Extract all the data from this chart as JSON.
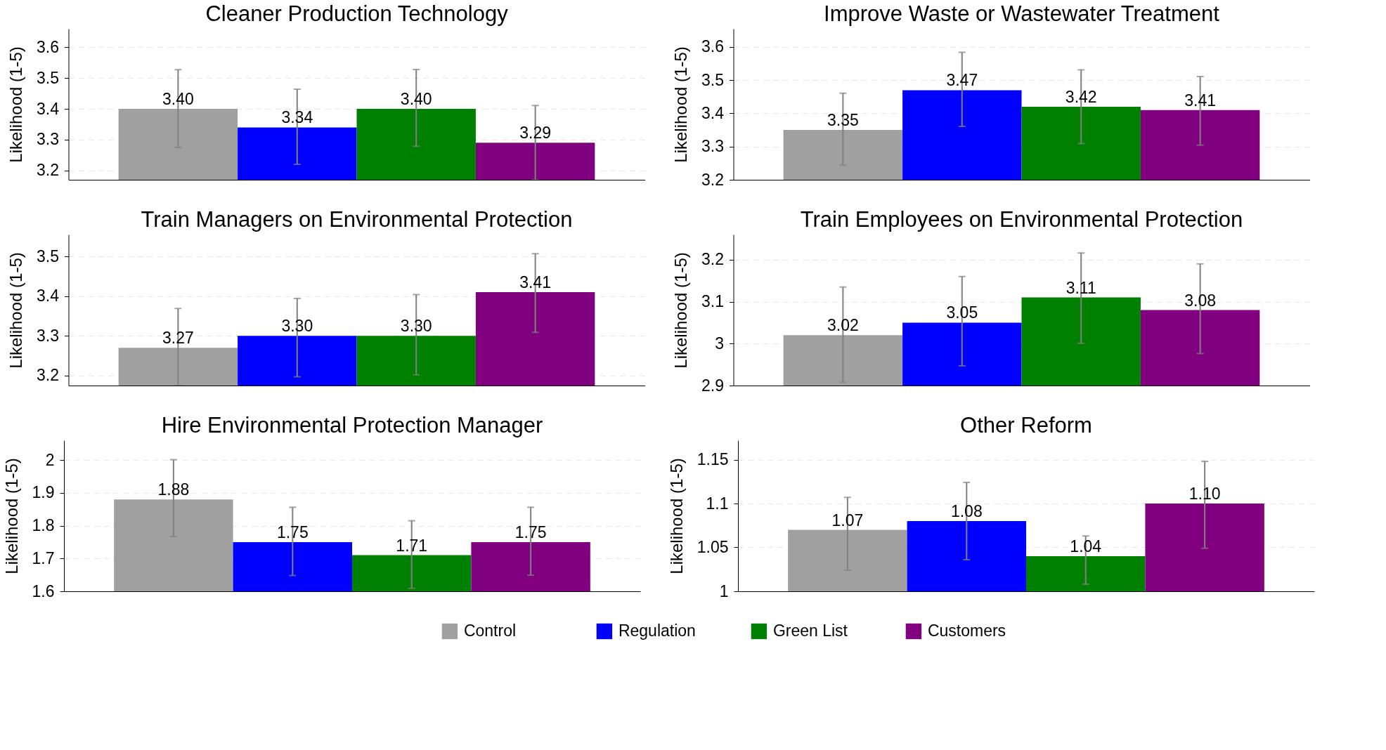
{
  "chart_data": [
    {
      "type": "bar",
      "title": "Cleaner Production Technology",
      "ylabel": "Likelihood (1-5)",
      "categories": [
        null
      ],
      "ylim": [
        3.17,
        3.66
      ],
      "yticks": [
        3.2,
        3.3,
        3.4,
        3.5,
        3.6
      ],
      "grid": "y",
      "legend": "bottom",
      "series": [
        {
          "name": "Control",
          "color": "#a0a0a0",
          "values": [
            3.4
          ],
          "value_labels": [
            "3.40"
          ],
          "errors": [
            [
              3.275,
              3.527
            ]
          ]
        },
        {
          "name": "Regulation",
          "color": "#0000ff",
          "values": [
            3.34
          ],
          "value_labels": [
            "3.34"
          ],
          "errors": [
            [
              3.22,
              3.464
            ]
          ]
        },
        {
          "name": "Green List",
          "color": "#008000",
          "values": [
            3.4
          ],
          "value_labels": [
            "3.40"
          ],
          "errors": [
            [
              3.279,
              3.528
            ]
          ]
        },
        {
          "name": "Customers",
          "color": "#800080",
          "values": [
            3.29
          ],
          "value_labels": [
            "3.29"
          ],
          "errors": [
            [
              3.17,
              3.411
            ]
          ]
        }
      ]
    },
    {
      "type": "bar",
      "title": "Improve Waste or Wastewater Treatment",
      "ylabel": "Likelihood (1-5)",
      "categories": [
        null
      ],
      "ylim": [
        3.2,
        3.655
      ],
      "yticks": [
        3.2,
        3.3,
        3.4,
        3.5,
        3.6
      ],
      "grid": "y",
      "legend": "bottom",
      "series": [
        {
          "name": "Control",
          "color": "#a0a0a0",
          "values": [
            3.35
          ],
          "value_labels": [
            "3.35"
          ],
          "errors": [
            [
              3.244,
              3.461
            ]
          ]
        },
        {
          "name": "Regulation",
          "color": "#0000ff",
          "values": [
            3.47
          ],
          "value_labels": [
            "3.47"
          ],
          "errors": [
            [
              3.361,
              3.584
            ]
          ]
        },
        {
          "name": "Green List",
          "color": "#008000",
          "values": [
            3.42
          ],
          "value_labels": [
            "3.42"
          ],
          "errors": [
            [
              3.309,
              3.531
            ]
          ]
        },
        {
          "name": "Customers",
          "color": "#800080",
          "values": [
            3.41
          ],
          "value_labels": [
            "3.41"
          ],
          "errors": [
            [
              3.304,
              3.511
            ]
          ]
        }
      ]
    },
    {
      "type": "bar",
      "title": "Train Managers on Environmental Protection",
      "ylabel": "Likelihood (1-5)",
      "categories": [
        null
      ],
      "ylim": [
        3.175,
        3.555
      ],
      "yticks": [
        3.2,
        3.3,
        3.4,
        3.5
      ],
      "grid": "y",
      "legend": "bottom",
      "series": [
        {
          "name": "Control",
          "color": "#a0a0a0",
          "values": [
            3.27
          ],
          "value_labels": [
            "3.27"
          ],
          "errors": [
            [
              3.175,
              3.369
            ]
          ]
        },
        {
          "name": "Regulation",
          "color": "#0000ff",
          "values": [
            3.3
          ],
          "value_labels": [
            "3.30"
          ],
          "errors": [
            [
              3.197,
              3.394
            ]
          ]
        },
        {
          "name": "Green List",
          "color": "#008000",
          "values": [
            3.3
          ],
          "value_labels": [
            "3.30"
          ],
          "errors": [
            [
              3.202,
              3.404
            ]
          ]
        },
        {
          "name": "Customers",
          "color": "#800080",
          "values": [
            3.41
          ],
          "value_labels": [
            "3.41"
          ],
          "errors": [
            [
              3.309,
              3.507
            ]
          ]
        }
      ]
    },
    {
      "type": "bar",
      "title": "Train Employees on Environmental Protection",
      "ylabel": "Likelihood (1-5)",
      "categories": [
        null
      ],
      "ylim": [
        2.9,
        3.26
      ],
      "yticks": [
        2.9,
        3,
        3.1,
        3.2
      ],
      "grid": "y",
      "legend": "bottom",
      "series": [
        {
          "name": "Control",
          "color": "#a0a0a0",
          "values": [
            3.02
          ],
          "value_labels": [
            "3.02"
          ],
          "errors": [
            [
              2.908,
              3.135
            ]
          ]
        },
        {
          "name": "Regulation",
          "color": "#0000ff",
          "values": [
            3.05
          ],
          "value_labels": [
            "3.05"
          ],
          "errors": [
            [
              2.947,
              3.16
            ]
          ]
        },
        {
          "name": "Green List",
          "color": "#008000",
          "values": [
            3.11
          ],
          "value_labels": [
            "3.11"
          ],
          "errors": [
            [
              3.001,
              3.216
            ]
          ]
        },
        {
          "name": "Customers",
          "color": "#800080",
          "values": [
            3.08
          ],
          "value_labels": [
            "3.08"
          ],
          "errors": [
            [
              2.976,
              3.19
            ]
          ]
        }
      ]
    },
    {
      "type": "bar",
      "title": "Hire Environmental Protection Manager",
      "ylabel": "Likelihood (1-5)",
      "categories": [
        null
      ],
      "ylim": [
        1.6,
        2.06
      ],
      "yticks": [
        1.6,
        1.7,
        1.8,
        1.9,
        2
      ],
      "grid": "y",
      "legend": "bottom",
      "series": [
        {
          "name": "Control",
          "color": "#a0a0a0",
          "values": [
            1.88
          ],
          "value_labels": [
            "1.88"
          ],
          "errors": [
            [
              1.767,
              2.001
            ]
          ]
        },
        {
          "name": "Regulation",
          "color": "#0000ff",
          "values": [
            1.75
          ],
          "value_labels": [
            "1.75"
          ],
          "errors": [
            [
              1.648,
              1.856
            ]
          ]
        },
        {
          "name": "Green List",
          "color": "#008000",
          "values": [
            1.71
          ],
          "value_labels": [
            "1.71"
          ],
          "errors": [
            [
              1.609,
              1.815
            ]
          ]
        },
        {
          "name": "Customers",
          "color": "#800080",
          "values": [
            1.75
          ],
          "value_labels": [
            "1.75"
          ],
          "errors": [
            [
              1.649,
              1.856
            ]
          ]
        }
      ]
    },
    {
      "type": "bar",
      "title": "Other Reform",
      "ylabel": "Likelihood (1-5)",
      "categories": [
        null
      ],
      "ylim": [
        1.0,
        1.172
      ],
      "yticks": [
        1,
        1.05,
        1.1,
        1.15
      ],
      "grid": "y",
      "legend": "bottom",
      "series": [
        {
          "name": "Control",
          "color": "#a0a0a0",
          "values": [
            1.07
          ],
          "value_labels": [
            "1.07"
          ],
          "errors": [
            [
              1.024,
              1.107
            ]
          ]
        },
        {
          "name": "Regulation",
          "color": "#0000ff",
          "values": [
            1.08
          ],
          "value_labels": [
            "1.08"
          ],
          "errors": [
            [
              1.036,
              1.124
            ]
          ]
        },
        {
          "name": "Green List",
          "color": "#008000",
          "values": [
            1.04
          ],
          "value_labels": [
            "1.04"
          ],
          "errors": [
            [
              1.008,
              1.063
            ]
          ]
        },
        {
          "name": "Customers",
          "color": "#800080",
          "values": [
            1.1
          ],
          "value_labels": [
            "1.10"
          ],
          "errors": [
            [
              1.049,
              1.148
            ]
          ]
        }
      ]
    }
  ]
}
